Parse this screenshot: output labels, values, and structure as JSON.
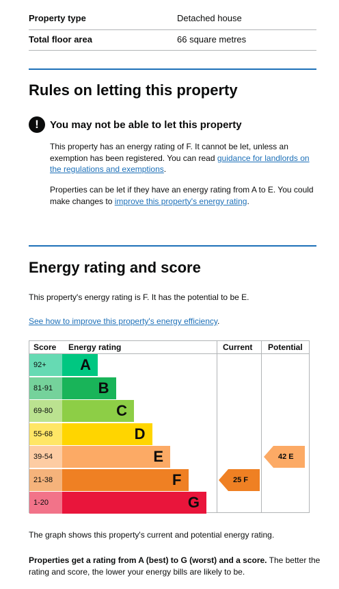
{
  "summary": [
    {
      "key": "Property type",
      "value": "Detached house"
    },
    {
      "key": "Total floor area",
      "value": "66 square metres"
    }
  ],
  "rules": {
    "heading": "Rules on letting this property",
    "warning_icon": "exclamation-icon",
    "warning_title": "You may not be able to let this property",
    "p1_text": "This property has an energy rating of F. It cannot be let, unless an exemption has been registered. You can read ",
    "p1_link": "guidance for landlords on the regulations and exemptions",
    "p1_end": ".",
    "p2_text": "Properties can be let if they have an energy rating from A to E. You could make changes to ",
    "p2_link": "improve this property's energy rating",
    "p2_end": "."
  },
  "energy": {
    "heading": "Energy rating and score",
    "intro": "This property's energy rating is F. It has the potential to be E.",
    "link": "See how to improve this property's energy efficiency",
    "link_end": ".",
    "caption": "The graph shows this property's current and potential energy rating.",
    "note_bold": "Properties get a rating from A (best) to G (worst) and a score.",
    "note_rest": " The better the rating and score, the lower your energy bills are likely to be."
  },
  "chart_data": {
    "type": "bar",
    "headers": [
      "Score",
      "Energy rating",
      "Current",
      "Potential"
    ],
    "bands": [
      {
        "score": "92+",
        "letter": "A",
        "color": "#00c781",
        "score_color": "#66dab3"
      },
      {
        "score": "81-91",
        "letter": "B",
        "color": "#19b459",
        "score_color": "#75d29b"
      },
      {
        "score": "69-80",
        "letter": "C",
        "color": "#8dce46",
        "score_color": "#bbe290"
      },
      {
        "score": "55-68",
        "letter": "D",
        "color": "#ffd500",
        "score_color": "#ffe666"
      },
      {
        "score": "39-54",
        "letter": "E",
        "color": "#fcaa65",
        "score_color": "#fdcca3"
      },
      {
        "score": "21-38",
        "letter": "F",
        "color": "#ef8023",
        "score_color": "#f5b37b"
      },
      {
        "score": "1-20",
        "letter": "G",
        "color": "#e9153b",
        "score_color": "#f27389"
      }
    ],
    "current": {
      "score": 25,
      "letter": "F",
      "label": "25 F",
      "color": "#ef8023"
    },
    "potential": {
      "score": 42,
      "letter": "E",
      "label": "42 E",
      "color": "#fcaa65"
    }
  }
}
